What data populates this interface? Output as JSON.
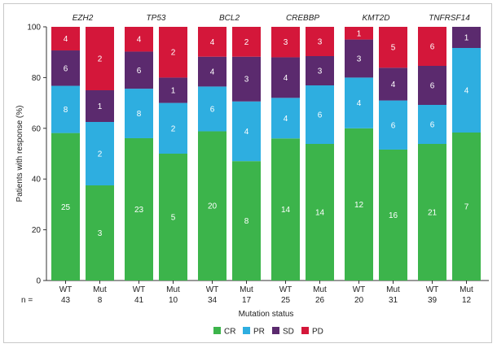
{
  "chart_data": {
    "type": "bar",
    "stacked": true,
    "ylabel": "Patients with response (%)",
    "xlabel": "Mutation status",
    "ylim": [
      0,
      100
    ],
    "yticks": [
      0,
      20,
      40,
      60,
      80,
      100
    ],
    "n_label": "n =",
    "groups": [
      {
        "gene": "EZH2",
        "bars": [
          {
            "status": "WT",
            "n": "43",
            "segments": [
              25,
              8,
              6,
              4
            ]
          },
          {
            "status": "Mut",
            "n": "8",
            "segments": [
              3,
              2,
              1,
              2
            ]
          }
        ]
      },
      {
        "gene": "TP53",
        "bars": [
          {
            "status": "WT",
            "n": "41",
            "segments": [
              23,
              8,
              6,
              4
            ]
          },
          {
            "status": "Mut",
            "n": "10",
            "segments": [
              5,
              2,
              1,
              2
            ]
          }
        ]
      },
      {
        "gene": "BCL2",
        "bars": [
          {
            "status": "WT",
            "n": "34",
            "segments": [
              20,
              6,
              4,
              4
            ]
          },
          {
            "status": "Mut",
            "n": "17",
            "segments": [
              8,
              4,
              3,
              2
            ]
          }
        ]
      },
      {
        "gene": "CREBBP",
        "bars": [
          {
            "status": "WT",
            "n": "25",
            "segments": [
              14,
              4,
              4,
              3
            ]
          },
          {
            "status": "Mut",
            "n": "26",
            "segments": [
              14,
              6,
              3,
              3
            ]
          }
        ]
      },
      {
        "gene": "KMT2D",
        "bars": [
          {
            "status": "WT",
            "n": "20",
            "segments": [
              12,
              4,
              3,
              1
            ]
          },
          {
            "status": "Mut",
            "n": "31",
            "segments": [
              16,
              6,
              4,
              5
            ]
          }
        ]
      },
      {
        "gene": "TNFRSF14",
        "bars": [
          {
            "status": "WT",
            "n": "39",
            "segments": [
              21,
              6,
              6,
              6
            ]
          },
          {
            "status": "Mut",
            "n": "12",
            "segments": [
              7,
              4,
              1,
              0
            ]
          }
        ]
      }
    ],
    "series": [
      {
        "name": "CR",
        "color": "#3cb44b"
      },
      {
        "name": "PR",
        "color": "#2eaee0"
      },
      {
        "name": "SD",
        "color": "#5b2a6e"
      },
      {
        "name": "PD",
        "color": "#d4173a"
      }
    ],
    "legend_position": "bottom"
  }
}
